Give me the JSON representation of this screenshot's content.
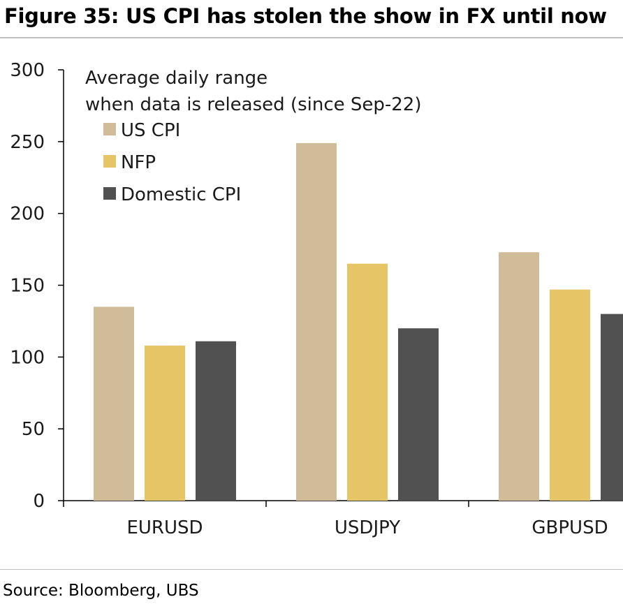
{
  "figure": {
    "title": "Figure 35: US CPI has stolen the show in FX until now",
    "source": "Source: Bloomberg, UBS"
  },
  "chart_data": {
    "type": "bar",
    "categories": [
      "EURUSD",
      "USDJPY",
      "GBPUSD"
    ],
    "series": [
      {
        "name": "US CPI",
        "values": [
          135,
          249,
          173
        ],
        "color": "#d1bc99"
      },
      {
        "name": "NFP",
        "values": [
          108,
          165,
          147
        ],
        "color": "#e6c566"
      },
      {
        "name": "Domestic CPI",
        "values": [
          111,
          120,
          130
        ],
        "color": "#515151"
      }
    ],
    "legend_title": [
      "Average daily range",
      "when data is released (since Sep-22)"
    ],
    "legend_position": "top-left",
    "ylim": [
      0,
      300
    ],
    "yticks": [
      "0",
      "50",
      "100",
      "150",
      "200",
      "250",
      "300"
    ],
    "grid": false,
    "xlabel": "",
    "ylabel": ""
  }
}
